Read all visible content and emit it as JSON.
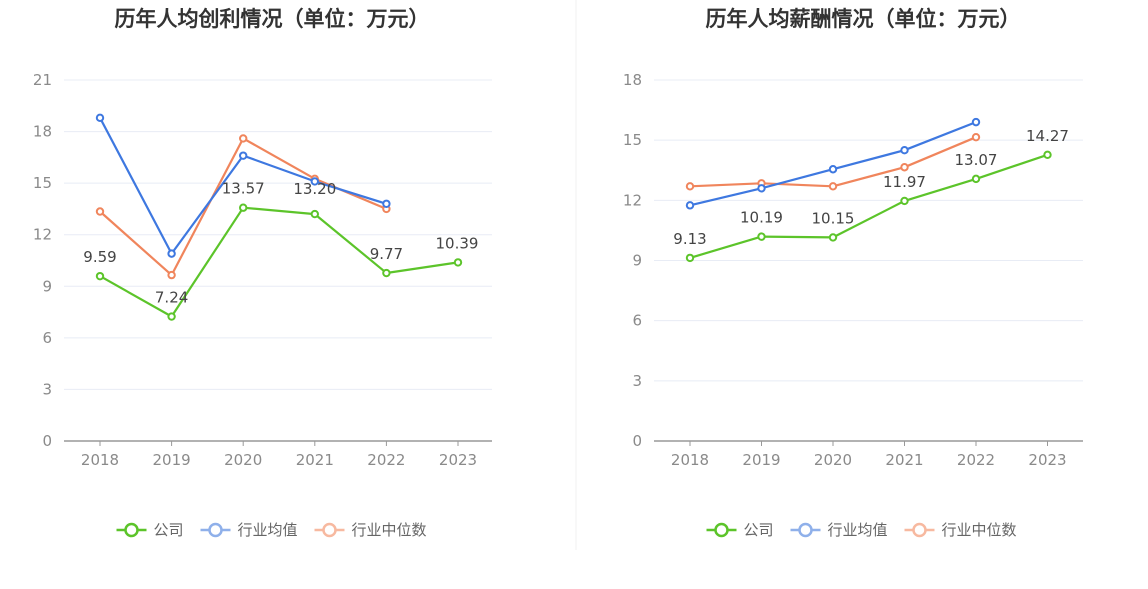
{
  "colors": {
    "company": "#5cc42a",
    "industry_avg": "#3e78e0",
    "industry_median": "#f0855c",
    "company_legend": "#5cc42a",
    "industry_avg_legend": "#8fb0ea",
    "industry_median_legend": "#f7b9a0",
    "grid": "#e8ecf5",
    "axis": "#999999"
  },
  "chart_data": [
    {
      "type": "line",
      "title": "历年人均创利情况（单位：万元）",
      "categories": [
        "2018",
        "2019",
        "2020",
        "2021",
        "2022",
        "2023"
      ],
      "ylim": [
        0,
        21
      ],
      "yticks": [
        "0",
        "3",
        "6",
        "9",
        "12",
        "15",
        "18",
        "21"
      ],
      "grid": true,
      "legend_position": "bottom",
      "series": [
        {
          "name": "公司",
          "key": "company",
          "values": [
            9.59,
            7.24,
            13.57,
            13.2,
            9.77,
            10.39
          ],
          "labels": [
            "9.59",
            "7.24",
            "13.57",
            "13.20",
            "9.77",
            "10.39"
          ]
        },
        {
          "name": "行业均值",
          "key": "industry_avg",
          "values": [
            18.8,
            10.9,
            16.6,
            15.1,
            13.8,
            null
          ]
        },
        {
          "name": "行业中位数",
          "key": "industry_median",
          "values": [
            13.35,
            9.65,
            17.6,
            15.25,
            13.5,
            null
          ]
        }
      ]
    },
    {
      "type": "line",
      "title": "历年人均薪酬情况（单位：万元）",
      "categories": [
        "2018",
        "2019",
        "2020",
        "2021",
        "2022",
        "2023"
      ],
      "ylim": [
        0,
        18
      ],
      "yticks": [
        "0",
        "3",
        "6",
        "9",
        "12",
        "15",
        "18"
      ],
      "grid": true,
      "legend_position": "bottom",
      "series": [
        {
          "name": "公司",
          "key": "company",
          "values": [
            9.13,
            10.19,
            10.15,
            11.97,
            13.07,
            14.27
          ],
          "labels": [
            "9.13",
            "10.19",
            "10.15",
            "11.97",
            "13.07",
            "14.27"
          ]
        },
        {
          "name": "行业均值",
          "key": "industry_avg",
          "values": [
            11.75,
            12.6,
            13.55,
            14.5,
            15.9,
            null
          ]
        },
        {
          "name": "行业中位数",
          "key": "industry_median",
          "values": [
            12.7,
            12.85,
            12.7,
            13.65,
            15.15,
            null
          ]
        }
      ]
    }
  ]
}
